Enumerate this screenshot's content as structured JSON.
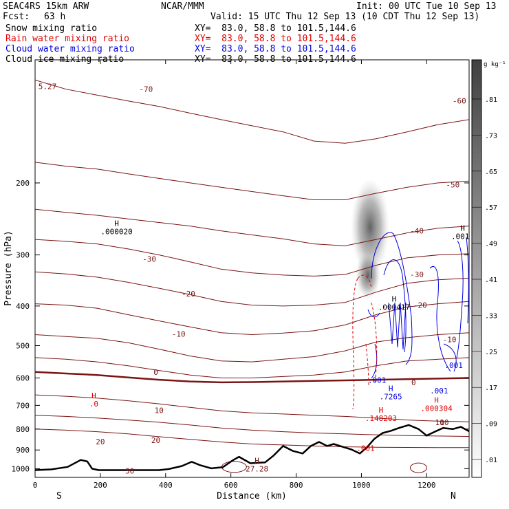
{
  "header": {
    "model": "SEAC4RS 15km ARW",
    "center": "NCAR/MMM",
    "init": "Init: 00 UTC Tue 10 Sep 13",
    "fcst_label": "Fcst:",
    "fcst_value": "63 h",
    "valid": "Valid: 15 UTC Thu 12 Sep 13 (10 CDT Thu 12 Sep 13)"
  },
  "fields": [
    {
      "name": "Snow mixing ratio",
      "xy": "XY=  83.0, 58.8 to 101.5,144.6",
      "color": "#000000"
    },
    {
      "name": "Rain water mixing ratio",
      "xy": "XY=  83.0, 58.8 to 101.5,144.6",
      "color": "#e00000"
    },
    {
      "name": "Cloud water mixing ratio",
      "xy": "XY=  83.0, 58.8 to 101.5,144.6",
      "color": "#0000e0"
    },
    {
      "name": "Cloud ice mixing ratio",
      "xy": "XY=  83.0, 58.8 to 101.5,144.6",
      "color": "#000000"
    }
  ],
  "colors": {
    "temperature": "#7a1414",
    "terrain": "#000000",
    "rain": "#e00000",
    "cloud_water": "#0000e0"
  },
  "chart_data": {
    "type": "heatmap",
    "xlabel": "Distance (km)",
    "ylabel": "Pressure (hPa)",
    "xlim": [
      0,
      1330
    ],
    "ylim": [
      100,
      1050
    ],
    "y_scale": "log",
    "x_ticks": [
      "0",
      "200",
      "400",
      "600",
      "800",
      "1000",
      "1200"
    ],
    "y_ticks": [
      "200",
      "300",
      "400",
      "500",
      "600",
      "700",
      "800",
      "900",
      "1000"
    ],
    "x_end_labels": {
      "left": "S",
      "right": "N"
    },
    "colorbar": {
      "units": "g kg⁻¹",
      "ticks": [
        ".81",
        ".73",
        ".65",
        ".57",
        ".49",
        ".41",
        ".33",
        ".25",
        ".17",
        ".09",
        ".01"
      ]
    },
    "temperature_contours": [
      {
        "label": "-70",
        "x": 340,
        "p": 118
      },
      {
        "label": "-60",
        "x": 1300,
        "p": 126
      },
      {
        "label": "-50",
        "x": 1280,
        "p": 202
      },
      {
        "label": "-40",
        "x": 1170,
        "p": 262
      },
      {
        "label": "-30",
        "x": 350,
        "p": 307
      },
      {
        "label": "-30",
        "x": 1170,
        "p": 335
      },
      {
        "label": "-20",
        "x": 470,
        "p": 373
      },
      {
        "label": "-20",
        "x": 1180,
        "p": 398
      },
      {
        "label": "-10",
        "x": 440,
        "p": 468
      },
      {
        "label": "-10",
        "x": 1270,
        "p": 483
      },
      {
        "label": "0",
        "x": 370,
        "p": 580
      },
      {
        "label": "0",
        "x": 1160,
        "p": 615
      },
      {
        "label": "10",
        "x": 380,
        "p": 720
      },
      {
        "label": "10",
        "x": 1240,
        "p": 770
      },
      {
        "label": "20",
        "x": 370,
        "p": 852
      },
      {
        "label": "20",
        "x": 200,
        "p": 858
      },
      {
        "label": "30",
        "x": 290,
        "p": 1013
      }
    ],
    "extrema": [
      {
        "label": "H",
        "value": ".000020",
        "x": 250,
        "p": 255,
        "color": "#000000"
      },
      {
        "label": "H",
        "value": ".0010",
        "x": 1310,
        "p": 262,
        "color": "#000000"
      },
      {
        "label": "H",
        "value": ".000417",
        "x": 1100,
        "p": 390,
        "color": "#000000"
      },
      {
        "label": "H",
        "value": ".0",
        "x": 180,
        "p": 672,
        "color": "#e00000"
      },
      {
        "label": "H",
        "value": ".148203",
        "x": 1060,
        "p": 730,
        "color": "#e00000"
      },
      {
        "label": "H",
        "value": ".000304",
        "x": 1230,
        "p": 690,
        "color": "#e00000"
      },
      {
        "label": "H",
        "value": ".7265",
        "x": 1090,
        "p": 646,
        "color": "#0000e0"
      },
      {
        "label": "H",
        "value": "27.28",
        "x": 680,
        "p": 970,
        "color": "#7a1414"
      }
    ],
    "annotations": [
      {
        "text": "5.27",
        "x": 10,
        "p": 116,
        "color": "#7a1414"
      },
      {
        "text": ".001",
        "x": 1020,
        "p": 607,
        "color": "#0000e0"
      },
      {
        "text": ".001",
        "x": 1210,
        "p": 645,
        "color": "#0000e0"
      },
      {
        "text": ".001",
        "x": 1255,
        "p": 558,
        "color": "#0000e0"
      },
      {
        "text": ".001",
        "x": 985,
        "p": 890,
        "color": "#e00000"
      },
      {
        "text": "10",
        "x": 1240,
        "p": 770,
        "color": "#7a1414"
      }
    ],
    "terrain": [
      {
        "x": 0,
        "p": 1008
      },
      {
        "x": 50,
        "p": 1004
      },
      {
        "x": 100,
        "p": 990
      },
      {
        "x": 140,
        "p": 952
      },
      {
        "x": 160,
        "p": 960
      },
      {
        "x": 175,
        "p": 1000
      },
      {
        "x": 195,
        "p": 1008
      },
      {
        "x": 380,
        "p": 1008
      },
      {
        "x": 410,
        "p": 1002
      },
      {
        "x": 450,
        "p": 985
      },
      {
        "x": 480,
        "p": 962
      },
      {
        "x": 505,
        "p": 980
      },
      {
        "x": 540,
        "p": 998
      },
      {
        "x": 575,
        "p": 992
      },
      {
        "x": 605,
        "p": 955
      },
      {
        "x": 625,
        "p": 935
      },
      {
        "x": 660,
        "p": 970
      },
      {
        "x": 705,
        "p": 965
      },
      {
        "x": 730,
        "p": 930
      },
      {
        "x": 760,
        "p": 880
      },
      {
        "x": 790,
        "p": 905
      },
      {
        "x": 820,
        "p": 918
      },
      {
        "x": 845,
        "p": 880
      },
      {
        "x": 870,
        "p": 860
      },
      {
        "x": 895,
        "p": 880
      },
      {
        "x": 915,
        "p": 870
      },
      {
        "x": 945,
        "p": 885
      },
      {
        "x": 970,
        "p": 898
      },
      {
        "x": 995,
        "p": 918
      },
      {
        "x": 1015,
        "p": 890
      },
      {
        "x": 1040,
        "p": 845
      },
      {
        "x": 1065,
        "p": 818
      },
      {
        "x": 1090,
        "p": 808
      },
      {
        "x": 1115,
        "p": 795
      },
      {
        "x": 1145,
        "p": 782
      },
      {
        "x": 1175,
        "p": 800
      },
      {
        "x": 1200,
        "p": 830
      },
      {
        "x": 1225,
        "p": 812
      },
      {
        "x": 1250,
        "p": 795
      },
      {
        "x": 1280,
        "p": 800
      },
      {
        "x": 1305,
        "p": 790
      },
      {
        "x": 1330,
        "p": 810
      }
    ]
  }
}
